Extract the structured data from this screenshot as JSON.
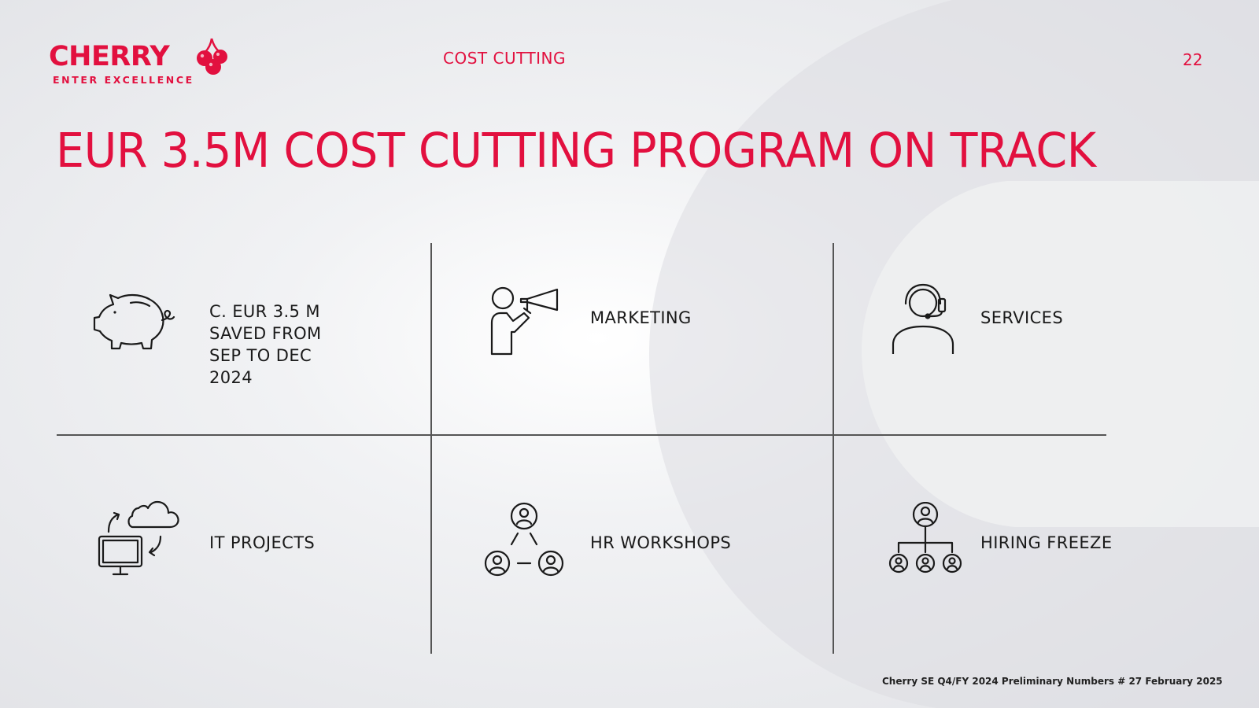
{
  "header": {
    "brand": "CHERRY",
    "tagline": "ENTER EXCELLENCE",
    "section": "COST CUTTING",
    "page_number": "22"
  },
  "title": "EUR 3.5M COST CUTTING PROGRAM ON TRACK",
  "cells": [
    {
      "icon": "piggy-bank-icon",
      "label": "C. EUR 3.5 M\nSAVED FROM\nSEP TO DEC\n2024"
    },
    {
      "icon": "megaphone-person-icon",
      "label": "MARKETING"
    },
    {
      "icon": "headset-person-icon",
      "label": "SERVICES"
    },
    {
      "icon": "computer-cloud-icon",
      "label": "IT PROJECTS"
    },
    {
      "icon": "people-network-icon",
      "label": "HR WORKSHOPS"
    },
    {
      "icon": "org-chart-icon",
      "label": "HIRING FREEZE"
    }
  ],
  "footer": "Cherry SE Q4/FY 2024 Preliminary Numbers # 27 February 2025",
  "colors": {
    "brand": "#e2103f",
    "text": "#1a1a1a",
    "line": "#555555"
  }
}
